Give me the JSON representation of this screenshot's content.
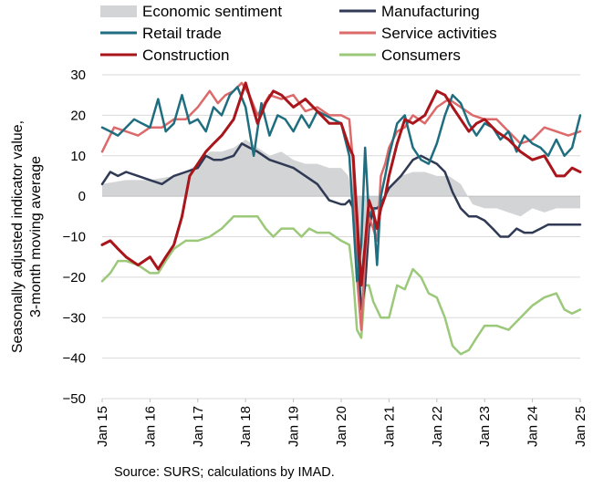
{
  "chart_data": {
    "type": "line",
    "title": "",
    "ylabel": [
      "Seasonally adjusted indicator value,",
      "3-month moving average"
    ],
    "ylim": [
      -50,
      30
    ],
    "y_ticks": [
      30,
      20,
      10,
      0,
      -10,
      -20,
      -30,
      -40,
      -50
    ],
    "x_ticks": [
      "Jan 15",
      "Jan 16",
      "Jan 17",
      "Jan 18",
      "Jan 19",
      "Jan 20",
      "Jan 21",
      "Jan 22",
      "Jan 23",
      "Jan 24",
      "Jan 25"
    ],
    "x_start": "Jan 15",
    "x_end": "Jan 25",
    "grid": "horizontal",
    "legend": "top",
    "source": "Source: SURS; calculations by IMAD.",
    "colors": {
      "economic_sentiment": "#d3d4d6",
      "manufacturing": "#303a55",
      "retail_trade": "#1f6e80",
      "service_activities": "#dc6a6a",
      "construction": "#a8151b",
      "consumers": "#9cc87a"
    },
    "series": [
      {
        "name": "Economic sentiment",
        "style": "area",
        "x": [
          2015.0,
          2015.5,
          2016.0,
          2016.5,
          2016.75,
          2017.0,
          2017.25,
          2017.5,
          2017.75,
          2018.0,
          2018.25,
          2018.5,
          2018.75,
          2019.0,
          2019.25,
          2019.5,
          2019.75,
          2020.0,
          2020.15,
          2020.25,
          2020.4,
          2020.5,
          2020.6,
          2020.75,
          2021.0,
          2021.25,
          2021.5,
          2021.75,
          2022.0,
          2022.25,
          2022.5,
          2022.6,
          2022.75,
          2023.0,
          2023.25,
          2023.5,
          2023.75,
          2024.0,
          2024.25,
          2024.5,
          2024.75,
          2025.0
        ],
        "values": [
          3,
          4,
          4,
          5,
          6,
          8,
          11,
          11,
          12,
          14,
          12,
          10,
          11,
          9,
          8,
          8,
          7,
          7,
          5,
          -2,
          -28,
          -20,
          -7,
          -3,
          2,
          5,
          6,
          6,
          5,
          5,
          3,
          1,
          -2,
          -3,
          -3,
          -4,
          -5,
          -3,
          -4,
          -3,
          -3,
          -3
        ]
      },
      {
        "name": "Manufacturing",
        "x": [
          2015.0,
          2015.17,
          2015.33,
          2015.5,
          2015.75,
          2016.0,
          2016.25,
          2016.5,
          2016.75,
          2017.0,
          2017.17,
          2017.33,
          2017.5,
          2017.75,
          2017.92,
          2018.08,
          2018.25,
          2018.5,
          2018.75,
          2019.0,
          2019.25,
          2019.5,
          2019.75,
          2020.0,
          2020.08,
          2020.17,
          2020.25,
          2020.33,
          2020.42,
          2020.5,
          2020.58,
          2020.67,
          2020.75,
          2020.83,
          2021.0,
          2021.25,
          2021.5,
          2021.67,
          2021.83,
          2022.0,
          2022.17,
          2022.33,
          2022.5,
          2022.67,
          2022.83,
          2023.0,
          2023.17,
          2023.33,
          2023.5,
          2023.67,
          2023.83,
          2024.0,
          2024.17,
          2024.33,
          2024.5,
          2024.67,
          2024.83,
          2025.0
        ],
        "values": [
          3,
          6,
          5,
          6,
          5,
          4,
          3,
          5,
          6,
          7,
          10,
          9,
          9,
          10,
          13,
          12,
          11,
          9,
          8,
          7,
          5,
          3,
          -1,
          -2,
          -2,
          -1,
          -3,
          -12,
          -28,
          -22,
          -8,
          -3,
          -3,
          -2,
          2,
          5,
          9,
          10,
          9,
          8,
          6,
          1,
          -3,
          -5,
          -5,
          -6,
          -8,
          -10,
          -10,
          -8,
          -9,
          -9,
          -8,
          -7,
          -7,
          -7,
          -7,
          -7
        ]
      },
      {
        "name": "Retail trade",
        "x": [
          2015.0,
          2015.17,
          2015.33,
          2015.5,
          2015.67,
          2015.83,
          2016.0,
          2016.17,
          2016.33,
          2016.5,
          2016.67,
          2016.83,
          2017.0,
          2017.17,
          2017.33,
          2017.5,
          2017.67,
          2017.83,
          2018.0,
          2018.17,
          2018.33,
          2018.5,
          2018.67,
          2018.83,
          2019.0,
          2019.17,
          2019.33,
          2019.5,
          2019.67,
          2019.83,
          2020.0,
          2020.17,
          2020.25,
          2020.33,
          2020.42,
          2020.5,
          2020.58,
          2020.67,
          2020.75,
          2020.83,
          2020.92,
          2021.0,
          2021.17,
          2021.33,
          2021.5,
          2021.67,
          2021.83,
          2022.0,
          2022.17,
          2022.33,
          2022.5,
          2022.67,
          2022.83,
          2023.0,
          2023.17,
          2023.33,
          2023.5,
          2023.67,
          2023.83,
          2024.0,
          2024.17,
          2024.33,
          2024.5,
          2024.67,
          2024.83,
          2025.0
        ],
        "values": [
          17,
          16,
          15,
          17,
          19,
          18,
          17,
          24,
          16,
          18,
          25,
          18,
          19,
          16,
          22,
          20,
          25,
          27,
          22,
          10,
          23,
          15,
          20,
          19,
          16,
          20,
          17,
          21,
          20,
          19,
          18,
          10,
          -5,
          -21,
          -12,
          12,
          -5,
          -3,
          -17,
          0,
          5,
          10,
          18,
          20,
          12,
          9,
          8,
          13,
          20,
          25,
          23,
          18,
          15,
          18,
          17,
          14,
          16,
          11,
          15,
          13,
          12,
          10,
          14,
          10,
          12,
          20
        ]
      },
      {
        "name": "Service activities",
        "x": [
          2015.0,
          2015.25,
          2015.5,
          2015.75,
          2016.0,
          2016.25,
          2016.5,
          2016.75,
          2017.0,
          2017.25,
          2017.42,
          2017.58,
          2017.75,
          2017.92,
          2018.08,
          2018.25,
          2018.5,
          2018.75,
          2019.0,
          2019.25,
          2019.5,
          2019.75,
          2020.0,
          2020.17,
          2020.25,
          2020.33,
          2020.42,
          2020.5,
          2020.58,
          2020.67,
          2020.75,
          2020.83,
          2020.92,
          2021.0,
          2021.17,
          2021.33,
          2021.5,
          2021.75,
          2022.0,
          2022.25,
          2022.5,
          2022.75,
          2023.0,
          2023.25,
          2023.5,
          2023.75,
          2024.0,
          2024.25,
          2024.5,
          2024.75,
          2025.0
        ],
        "values": [
          11,
          17,
          16,
          15,
          17,
          17,
          19,
          19,
          22,
          26,
          23,
          25,
          26,
          28,
          25,
          20,
          25,
          24,
          25,
          21,
          22,
          20,
          20,
          19,
          8,
          -20,
          -33,
          -15,
          -5,
          -8,
          -11,
          5,
          8,
          12,
          16,
          17,
          20,
          18,
          22,
          24,
          22,
          20,
          19,
          19,
          16,
          13,
          14,
          17,
          16,
          15,
          16
        ]
      },
      {
        "name": "Construction",
        "x": [
          2015.0,
          2015.17,
          2015.33,
          2015.5,
          2015.75,
          2016.0,
          2016.17,
          2016.33,
          2016.5,
          2016.67,
          2016.83,
          2017.0,
          2017.17,
          2017.33,
          2017.5,
          2017.75,
          2018.0,
          2018.25,
          2018.42,
          2018.58,
          2018.75,
          2019.0,
          2019.25,
          2019.5,
          2019.75,
          2020.0,
          2020.17,
          2020.25,
          2020.33,
          2020.42,
          2020.5,
          2020.58,
          2020.67,
          2020.75,
          2020.83,
          2020.92,
          2021.0,
          2021.17,
          2021.33,
          2021.5,
          2021.75,
          2022.0,
          2022.17,
          2022.33,
          2022.5,
          2022.67,
          2022.83,
          2023.0,
          2023.25,
          2023.5,
          2023.75,
          2024.0,
          2024.25,
          2024.5,
          2024.67,
          2024.83,
          2025.0
        ],
        "values": [
          -12,
          -11,
          -13,
          -15,
          -17,
          -15,
          -18,
          -15,
          -12,
          -5,
          5,
          8,
          11,
          13,
          15,
          19,
          28,
          18,
          23,
          26,
          25,
          22,
          24,
          21,
          18,
          18,
          12,
          10,
          -5,
          -22,
          -12,
          -1,
          -4,
          -8,
          -3,
          0,
          5,
          13,
          19,
          18,
          20,
          26,
          25,
          22,
          19,
          16,
          18,
          19,
          16,
          14,
          11,
          9,
          10,
          5,
          5,
          7,
          6
        ]
      },
      {
        "name": "Consumers",
        "x": [
          2015.0,
          2015.17,
          2015.33,
          2015.5,
          2015.75,
          2016.0,
          2016.17,
          2016.33,
          2016.5,
          2016.75,
          2017.0,
          2017.25,
          2017.5,
          2017.75,
          2018.0,
          2018.25,
          2018.42,
          2018.58,
          2018.75,
          2019.0,
          2019.17,
          2019.33,
          2019.5,
          2019.75,
          2020.0,
          2020.17,
          2020.25,
          2020.33,
          2020.42,
          2020.5,
          2020.58,
          2020.67,
          2020.83,
          2021.0,
          2021.17,
          2021.33,
          2021.5,
          2021.67,
          2021.83,
          2022.0,
          2022.17,
          2022.33,
          2022.5,
          2022.67,
          2022.83,
          2023.0,
          2023.25,
          2023.5,
          2023.75,
          2024.0,
          2024.25,
          2024.5,
          2024.67,
          2024.83,
          2025.0
        ],
        "values": [
          -21,
          -19,
          -16,
          -16,
          -17,
          -19,
          -19,
          -16,
          -13,
          -11,
          -11,
          -10,
          -8,
          -5,
          -5,
          -5,
          -8,
          -10,
          -8,
          -8,
          -10,
          -8,
          -9,
          -9,
          -11,
          -12,
          -20,
          -33,
          -35,
          -22,
          -22,
          -26,
          -30,
          -30,
          -22,
          -23,
          -18,
          -20,
          -24,
          -25,
          -30,
          -37,
          -39,
          -38,
          -35,
          -32,
          -32,
          -33,
          -30,
          -27,
          -25,
          -24,
          -28,
          -29,
          -28
        ]
      }
    ]
  }
}
